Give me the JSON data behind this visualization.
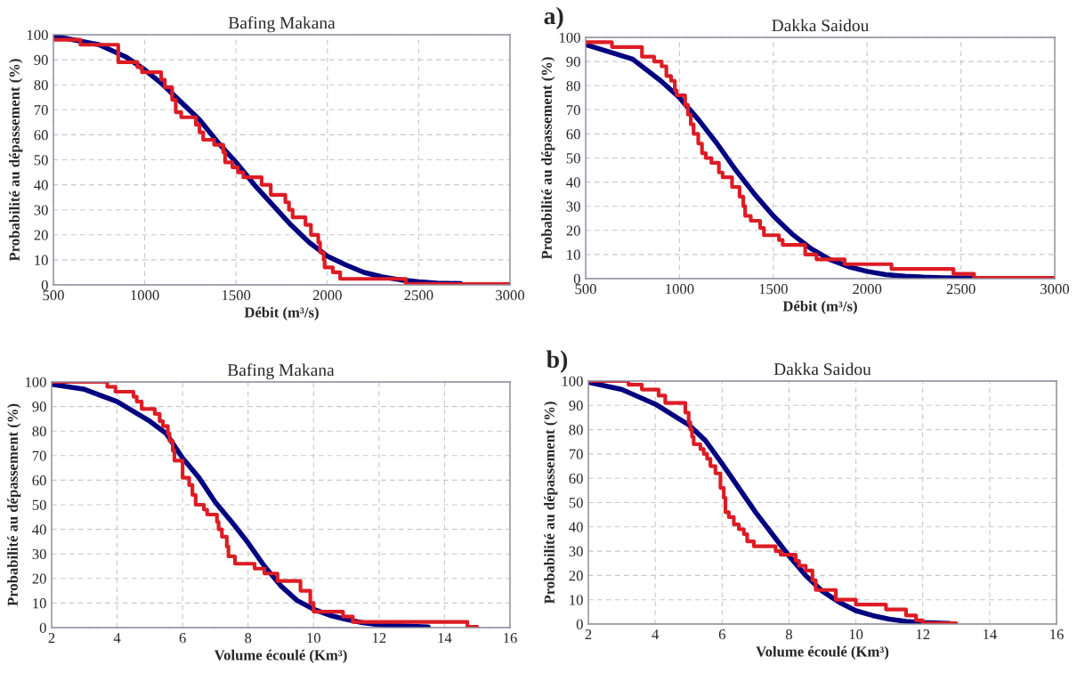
{
  "chart_data": [
    {
      "type": "line",
      "title": "Bafing Makana",
      "xlabel": "Débit (m³/s)",
      "ylabel": "Probabilité au dépassement (%)",
      "xlim": [
        500,
        3000
      ],
      "xticks": [
        500,
        1000,
        1500,
        2000,
        2500,
        3000
      ],
      "ylim": [
        0,
        100
      ],
      "yticks": [
        0,
        10,
        20,
        30,
        40,
        50,
        60,
        70,
        80,
        90,
        100
      ],
      "grid": true,
      "series": [
        {
          "color": "#000080",
          "x": [
            500,
            750,
            900,
            1000,
            1100,
            1200,
            1300,
            1400,
            1500,
            1600,
            1700,
            1800,
            1900,
            2000,
            2100,
            2200,
            2300,
            2400,
            2500,
            2600,
            2730
          ],
          "values": [
            99.5,
            96,
            91,
            86,
            80,
            73,
            66,
            57,
            49,
            40,
            32,
            24,
            17,
            11.5,
            8,
            5,
            3.2,
            2,
            1.2,
            0.7,
            0.5
          ]
        },
        {
          "type": "step",
          "color": "#dd1c24",
          "x": [
            500,
            648,
            855,
            960,
            985,
            1090,
            1110,
            1150,
            1170,
            1200,
            1280,
            1300,
            1320,
            1380,
            1430,
            1440,
            1480,
            1510,
            1540,
            1640,
            1690,
            1770,
            1790,
            1810,
            1880,
            1910,
            1950,
            1960,
            1980,
            1985,
            2030,
            2070,
            2430,
            3000
          ],
          "values": [
            98,
            96,
            89,
            87,
            85,
            82,
            79,
            74,
            69,
            67,
            64,
            61,
            58,
            56,
            53,
            49,
            47,
            45,
            43,
            40,
            36,
            33,
            30,
            27,
            24,
            20,
            17,
            13,
            10,
            7,
            5,
            2.4,
            0.3,
            0.3
          ]
        }
      ]
    },
    {
      "type": "line",
      "title": "Dakka Saidou",
      "xlabel": "Débit (m³/s)",
      "ylabel": "Probabilité au dépassement (%)",
      "xlim": [
        500,
        3000
      ],
      "xticks": [
        500,
        1000,
        1500,
        2000,
        2500,
        3000
      ],
      "ylim": [
        0,
        100
      ],
      "yticks": [
        0,
        10,
        20,
        30,
        40,
        50,
        60,
        70,
        80,
        90,
        100
      ],
      "grid": true,
      "annotations": [
        "a)"
      ],
      "series": [
        {
          "color": "#000080",
          "x": [
            500,
            750,
            900,
            1000,
            1100,
            1200,
            1300,
            1400,
            1500,
            1600,
            1700,
            1800,
            1900,
            2000,
            2100,
            2200,
            2300,
            2400,
            2560
          ],
          "values": [
            97,
            91,
            82,
            75,
            66,
            56,
            45,
            35,
            26,
            18.5,
            12.5,
            8,
            5,
            3,
            1.7,
            1,
            0.6,
            0.4,
            0.3
          ]
        },
        {
          "type": "step",
          "color": "#dd1c24",
          "x": [
            500,
            640,
            800,
            865,
            905,
            930,
            955,
            975,
            985,
            1030,
            1045,
            1060,
            1075,
            1100,
            1120,
            1140,
            1170,
            1210,
            1230,
            1280,
            1320,
            1340,
            1350,
            1380,
            1430,
            1450,
            1530,
            1550,
            1670,
            1730,
            1880,
            2130,
            2460,
            2570,
            3000
          ],
          "values": [
            98,
            96,
            92,
            90,
            88,
            84,
            82,
            78,
            76,
            72,
            68,
            64,
            60,
            56,
            52,
            50,
            48,
            44,
            42,
            38,
            34,
            30,
            26,
            24,
            21,
            18,
            16,
            14,
            10,
            8,
            6,
            4,
            2,
            0.3,
            0.3
          ]
        }
      ]
    },
    {
      "type": "line",
      "title": "Bafing Makana",
      "xlabel": "Volume écoulé (Km³)",
      "ylabel": "Probabilité au dépassement (%)",
      "xlim": [
        2,
        16
      ],
      "xticks": [
        2,
        4,
        6,
        8,
        10,
        12,
        14,
        16
      ],
      "ylim": [
        0,
        100
      ],
      "yticks": [
        0,
        10,
        20,
        30,
        40,
        50,
        60,
        70,
        80,
        90,
        100
      ],
      "grid": true,
      "series": [
        {
          "color": "#000080",
          "x": [
            2,
            3,
            4,
            5,
            5.5,
            6,
            6.5,
            7,
            7.5,
            8,
            8.5,
            9,
            9.5,
            10,
            10.5,
            11,
            11.5,
            12,
            13,
            13.5
          ],
          "values": [
            99,
            97,
            92,
            84,
            79,
            69,
            61,
            51,
            43,
            34.5,
            25,
            17,
            11,
            7.5,
            5,
            3.3,
            2,
            1.2,
            0.5,
            0.3
          ]
        },
        {
          "type": "step",
          "color": "#dd1c24",
          "x": [
            2,
            3.7,
            3.95,
            4.5,
            4.6,
            4.75,
            5.15,
            5.3,
            5.4,
            5.55,
            5.6,
            5.7,
            5.75,
            6.0,
            6.2,
            6.3,
            6.4,
            6.65,
            6.75,
            7.05,
            7.1,
            7.2,
            7.35,
            7.4,
            7.6,
            8.2,
            8.5,
            8.9,
            9.6,
            9.9,
            10.0,
            10.9,
            11.2,
            14.7,
            15.0
          ],
          "values": [
            100,
            98,
            96,
            94,
            92,
            89,
            87,
            84,
            82,
            79,
            76,
            72,
            68,
            61,
            58,
            54,
            50,
            48,
            46,
            43,
            40,
            37,
            33,
            29,
            26,
            24,
            22,
            19,
            15,
            10,
            6.5,
            4.5,
            2.3,
            0.3,
            0.3
          ]
        }
      ]
    },
    {
      "type": "line",
      "title": "Dakka Saidou",
      "xlabel": "Volume écoulé (Km³)",
      "ylabel": "Probabilité au dépassement (%)",
      "xlim": [
        2,
        16
      ],
      "xticks": [
        2,
        4,
        6,
        8,
        10,
        12,
        14,
        16
      ],
      "ylim": [
        0,
        100
      ],
      "yticks": [
        0,
        10,
        20,
        30,
        40,
        50,
        60,
        70,
        80,
        90,
        100
      ],
      "grid": true,
      "annotations": [
        "b)"
      ],
      "series": [
        {
          "color": "#000080",
          "x": [
            2,
            3,
            4,
            5,
            5.5,
            6,
            6.5,
            7,
            7.5,
            8,
            8.5,
            9,
            9.5,
            10,
            10.5,
            11,
            11.5,
            12,
            12.8
          ],
          "values": [
            99.5,
            96.5,
            90.5,
            82,
            75.5,
            66,
            56,
            46,
            37,
            28,
            20,
            13.5,
            9,
            5.5,
            3.5,
            2,
            1.1,
            0.6,
            0.3
          ]
        },
        {
          "type": "step",
          "color": "#dd1c24",
          "x": [
            2,
            3.2,
            3.6,
            4.1,
            4.3,
            4.9,
            5.0,
            5.05,
            5.1,
            5.15,
            5.35,
            5.45,
            5.55,
            5.65,
            5.8,
            5.95,
            6.05,
            6.1,
            6.2,
            6.35,
            6.5,
            6.65,
            6.75,
            6.95,
            7.6,
            7.75,
            8.2,
            8.3,
            8.5,
            8.7,
            8.8,
            9.4,
            10.0,
            10.9,
            11.5,
            11.8,
            12.0,
            13.0
          ],
          "values": [
            100,
            98.5,
            96.5,
            94,
            91,
            87,
            83,
            80,
            77,
            74,
            72,
            70,
            68,
            65,
            62,
            56,
            52,
            46,
            44,
            41,
            39,
            37,
            34,
            32,
            30,
            28.5,
            26,
            24,
            22,
            18,
            14,
            10,
            8,
            6,
            3.5,
            1.5,
            0.3,
            0.3
          ]
        }
      ]
    }
  ]
}
